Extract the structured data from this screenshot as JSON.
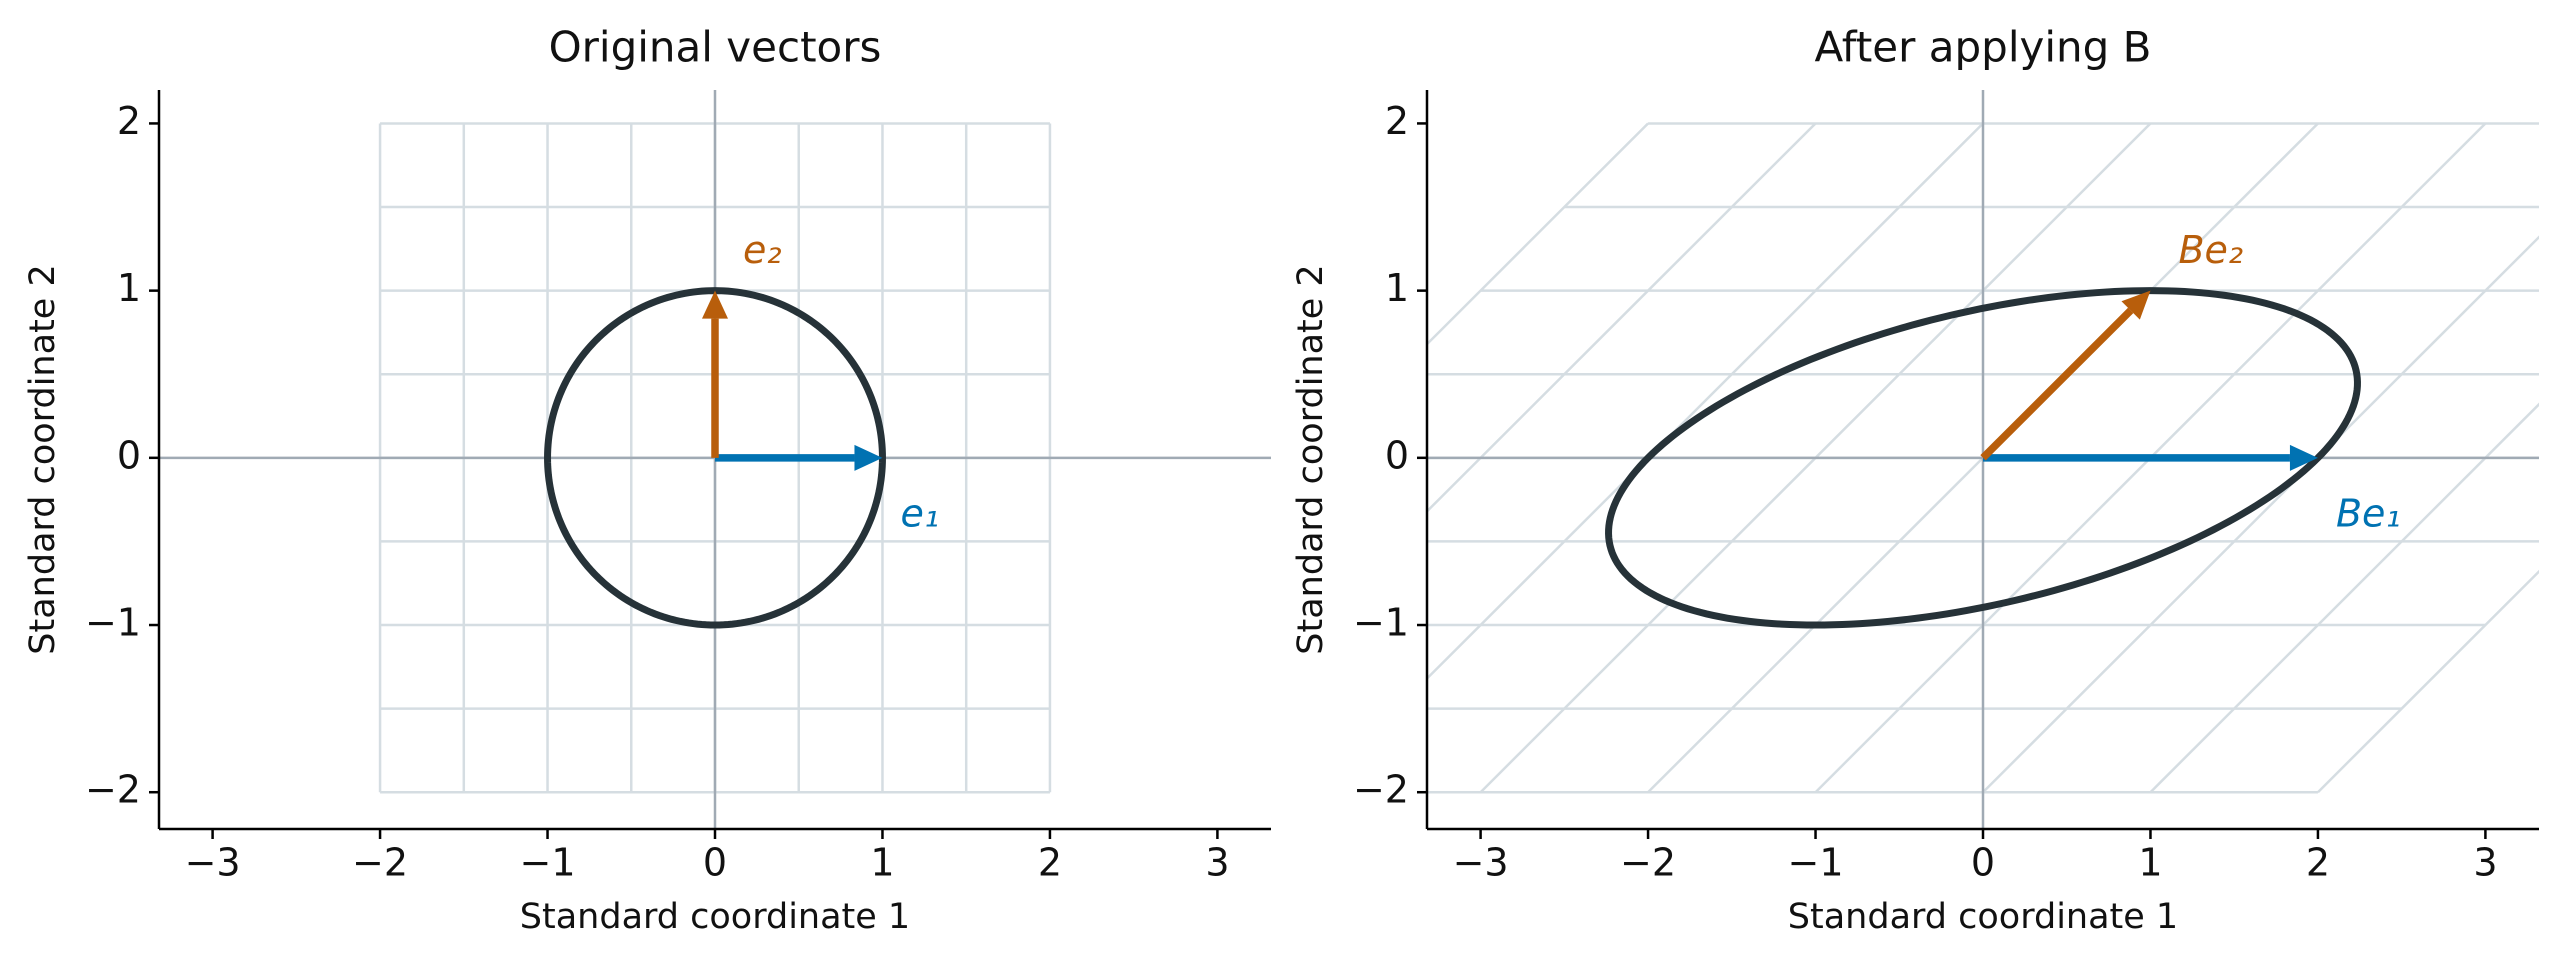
{
  "chart_data": [
    {
      "type": "vector",
      "title": "Original vectors",
      "x_label": "Standard coordinate 1",
      "y_label": "Standard coordinate 2",
      "xlim": [
        -3.32,
        3.32
      ],
      "ylim": [
        -2.22,
        2.2
      ],
      "xticks": [
        {
          "value": -3,
          "label": "−3"
        },
        {
          "value": -2,
          "label": "−2"
        },
        {
          "value": -1,
          "label": "−1"
        },
        0,
        1,
        2,
        3
      ],
      "yticks": [
        {
          "value": -2,
          "label": "−2"
        },
        {
          "value": -1,
          "label": "−1"
        },
        0,
        1,
        2
      ],
      "grid": [
        -2,
        -1.5,
        -1,
        -0.5,
        0,
        0.5,
        1,
        1.5,
        2
      ],
      "circle_radius": 1,
      "vectors": [
        {
          "name": "e₁",
          "color": "#0072b2",
          "x": 1,
          "y": 0
        },
        {
          "name": "e₂",
          "color": "#b85e0b",
          "x": 0,
          "y": 1
        }
      ]
    },
    {
      "type": "vector",
      "title": "After applying B",
      "x_label": "Standard coordinate 1",
      "y_label": "Standard coordinate 2",
      "xlim": [
        -3.32,
        3.32
      ],
      "ylim": [
        -2.22,
        2.2
      ],
      "xticks": [
        {
          "value": -3,
          "label": "−3"
        },
        {
          "value": -2,
          "label": "−2"
        },
        {
          "value": -1,
          "label": "−1"
        },
        0,
        1,
        2,
        3
      ],
      "yticks": [
        {
          "value": -2,
          "label": "−2"
        },
        {
          "value": -1,
          "label": "−1"
        },
        0,
        1,
        2
      ],
      "grid": [
        -2,
        -1.5,
        -1,
        -0.5,
        0,
        0.5,
        1,
        1.5,
        2
      ],
      "circle_radius": 1,
      "vectors": [
        {
          "name": "Be₁",
          "color": "#0072b2",
          "x": 2,
          "y": 0
        },
        {
          "name": "Be₂",
          "color": "#b85e0b",
          "x": 1,
          "y": 1
        }
      ]
    }
  ]
}
